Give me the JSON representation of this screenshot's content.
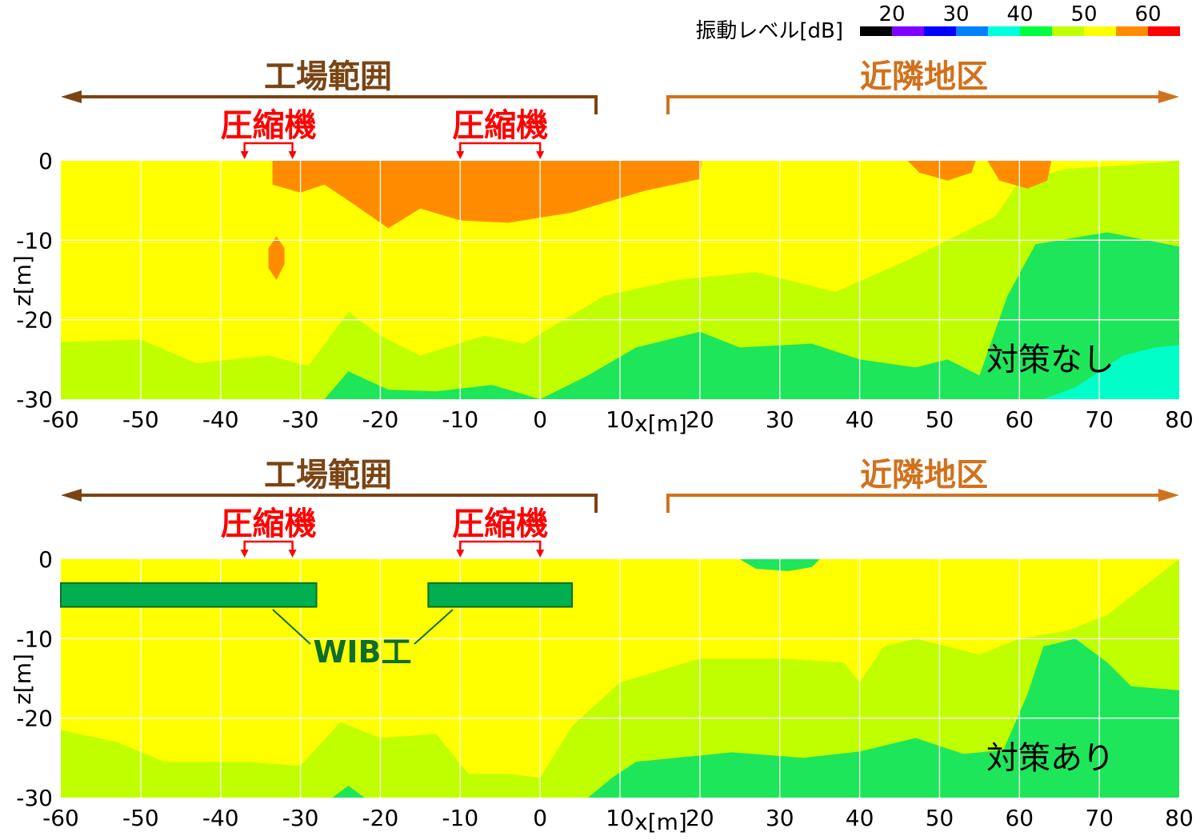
{
  "chart_data": [
    {
      "type": "heatmap",
      "xlabel": "x[m]",
      "ylabel": "z[m]",
      "xlim": [
        -60,
        80
      ],
      "ylim": [
        -30,
        0
      ],
      "xticks": [
        -60,
        -50,
        -40,
        -30,
        -20,
        -10,
        0,
        10,
        20,
        30,
        40,
        50,
        60,
        70,
        80
      ],
      "yticks": [
        0,
        -10,
        -20,
        -30
      ],
      "grid": true,
      "annotations": {
        "factory_range": "工場範囲",
        "factory_x": [
          -60,
          7
        ],
        "neighbor_area": "近隣地区",
        "neighbor_x": [
          16,
          80
        ],
        "compressors": [
          {
            "label": "圧縮機",
            "x": [
              -37,
              -31
            ]
          },
          {
            "label": "圧縮機",
            "x": [
              -10,
              0
            ]
          }
        ],
        "case_label": "対策なし"
      },
      "contours": [
        {
          "level": 45,
          "top": [
            [
              -60,
              -30
            ],
            [
              -60,
              -22.8
            ],
            [
              -50,
              -22.5
            ],
            [
              -43,
              -25.5
            ],
            [
              -34,
              -24.5
            ],
            [
              -29,
              -25.8
            ],
            [
              -24,
              -19
            ],
            [
              -20,
              -22
            ],
            [
              -15,
              -24.5
            ],
            [
              -7,
              -22
            ],
            [
              -2,
              -23
            ],
            [
              8,
              -17
            ],
            [
              17,
              -15
            ],
            [
              27,
              -14
            ],
            [
              37,
              -16.5
            ],
            [
              46,
              -12.5
            ],
            [
              57,
              -7
            ],
            [
              60,
              -2.5
            ],
            [
              66,
              -1
            ],
            [
              74,
              -0.5
            ],
            [
              80,
              0
            ]
          ],
          "right_end": [
            80,
            -30
          ]
        },
        {
          "level": 40,
          "top": [
            [
              -60,
              -30
            ],
            [
              -56,
              -30
            ],
            [
              -52,
              -30
            ],
            [
              -47,
              -30
            ],
            [
              -42,
              -30
            ],
            [
              -37,
              -30
            ],
            [
              -32,
              -30
            ],
            [
              -27,
              -30
            ],
            [
              -24,
              -26.5
            ],
            [
              -19,
              -28.8
            ],
            [
              -13,
              -29
            ],
            [
              -6,
              -28.2
            ],
            [
              0,
              -30
            ],
            [
              6,
              -27
            ],
            [
              12,
              -23.5
            ],
            [
              20,
              -21.5
            ],
            [
              25,
              -23.5
            ],
            [
              34,
              -23
            ],
            [
              40,
              -25
            ],
            [
              47,
              -26
            ],
            [
              51,
              -25
            ],
            [
              55,
              -27
            ],
            [
              58.5,
              -17
            ],
            [
              62,
              -10.5
            ],
            [
              71,
              -9
            ],
            [
              80,
              -10.8
            ]
          ],
          "right_end": [
            80,
            -30
          ]
        },
        {
          "level": 35,
          "top": [
            [
              63,
              -30
            ],
            [
              67,
              -28.5
            ],
            [
              73,
              -24.5
            ],
            [
              77,
              -23.5
            ],
            [
              80,
              -23.2
            ]
          ],
          "right_end": [
            80,
            -30
          ]
        },
        {
          "level": 55,
          "top": [
            [
              -33.5,
              -3
            ],
            [
              -30,
              -4
            ],
            [
              -27,
              -3
            ],
            [
              -24,
              -5
            ],
            [
              -19,
              -8.5
            ],
            [
              -15,
              -6
            ],
            [
              -10,
              -7.5
            ],
            [
              -4,
              -7.8
            ],
            [
              4,
              -6.5
            ],
            [
              9,
              -5
            ],
            [
              13,
              -3.8
            ],
            [
              20,
              -2.3
            ],
            [
              20.2,
              0
            ],
            [
              -33.5,
              0
            ]
          ],
          "right_end": [
            -33.5,
            0
          ]
        },
        {
          "level": 55,
          "spot": [
            [
              -34,
              -13.5
            ],
            [
              -33,
              -15
            ],
            [
              -32,
              -13
            ],
            [
              -32,
              -11
            ],
            [
              -33,
              -9.5
            ],
            [
              -34,
              -11
            ]
          ]
        },
        {
          "level": 55,
          "spot": [
            [
              56,
              0
            ],
            [
              57.5,
              -2.5
            ],
            [
              61,
              -3.5
            ],
            [
              63.5,
              -2.5
            ],
            [
              64,
              0
            ]
          ]
        },
        {
          "level": 55,
          "spot": [
            [
              46,
              0
            ],
            [
              47.5,
              -1.5
            ],
            [
              51,
              -2.5
            ],
            [
              54,
              -1.5
            ],
            [
              54.5,
              0
            ]
          ]
        }
      ]
    },
    {
      "type": "heatmap",
      "xlabel": "x[m]",
      "ylabel": "z[m]",
      "xlim": [
        -60,
        80
      ],
      "ylim": [
        -30,
        0
      ],
      "xticks": [
        -60,
        -50,
        -40,
        -30,
        -20,
        -10,
        0,
        10,
        20,
        30,
        40,
        50,
        60,
        70,
        80
      ],
      "yticks": [
        0,
        -10,
        -20,
        -30
      ],
      "grid": true,
      "annotations": {
        "factory_range": "工場範囲",
        "factory_x": [
          -60,
          7
        ],
        "neighbor_area": "近隣地区",
        "neighbor_x": [
          16,
          80
        ],
        "compressors": [
          {
            "label": "圧縮機",
            "x": [
              -37,
              -31
            ]
          },
          {
            "label": "圧縮機",
            "x": [
              -10,
              0
            ]
          }
        ],
        "case_label": "対策あり",
        "wib_label": "WIB工",
        "wib_barriers": [
          {
            "x": [
              -60,
              -28
            ],
            "z": [
              -3,
              -6
            ]
          },
          {
            "x": [
              -14,
              4
            ],
            "z": [
              -3,
              -6
            ]
          }
        ]
      },
      "contours": [
        {
          "level": 45,
          "top": [
            [
              -60,
              -30
            ],
            [
              -60,
              -21.5
            ],
            [
              -53,
              -23
            ],
            [
              -47,
              -25.5
            ],
            [
              -37,
              -25.5
            ],
            [
              -30,
              -26
            ],
            [
              -25,
              -20.5
            ],
            [
              -20,
              -22.5
            ],
            [
              -13,
              -22
            ],
            [
              -9,
              -27
            ],
            [
              -4,
              -27
            ],
            [
              0,
              -27.5
            ],
            [
              4,
              -21
            ],
            [
              10,
              -15.5
            ],
            [
              20,
              -12.5
            ],
            [
              30,
              -12.5
            ],
            [
              38,
              -13
            ],
            [
              40,
              -15.5
            ],
            [
              43,
              -11
            ],
            [
              47,
              -10
            ],
            [
              53,
              -11.5
            ],
            [
              55,
              -12
            ],
            [
              60,
              -10
            ],
            [
              66,
              -9
            ],
            [
              71,
              -7
            ],
            [
              80,
              0
            ]
          ],
          "right_end": [
            80,
            -30
          ]
        },
        {
          "level": 40,
          "top": [
            [
              -26,
              -30
            ],
            [
              -24,
              -28.5
            ],
            [
              -22,
              -30
            ],
            [
              -12,
              -30
            ],
            [
              -6,
              -30
            ],
            [
              6,
              -30
            ],
            [
              9,
              -27.5
            ],
            [
              12,
              -25.5
            ],
            [
              17,
              -25
            ],
            [
              24,
              -24.3
            ],
            [
              33,
              -25
            ],
            [
              40,
              -24.2
            ],
            [
              47,
              -22.5
            ],
            [
              53,
              -24.5
            ],
            [
              58,
              -24
            ],
            [
              61,
              -17
            ],
            [
              63,
              -11
            ],
            [
              67,
              -10
            ],
            [
              71,
              -13
            ],
            [
              74,
              -16
            ],
            [
              80,
              -16.5
            ]
          ],
          "right_end": [
            80,
            -30
          ]
        },
        {
          "level": 50,
          "top": [
            [
              -39,
              0
            ],
            [
              -38,
              -2
            ],
            [
              -36,
              -6
            ],
            [
              -35,
              -11
            ],
            [
              -34,
              -15
            ],
            [
              -32,
              -16.5
            ],
            [
              -29,
              -10
            ],
            [
              -27,
              -4.5
            ],
            [
              -27,
              0
            ]
          ],
          "right_end": [
            -39,
            0
          ]
        },
        {
          "level": 50,
          "spot": [
            [
              -26,
              0
            ],
            [
              -25,
              -4
            ],
            [
              -23,
              -9
            ],
            [
              -20,
              -12
            ],
            [
              -17,
              -11.5
            ],
            [
              -15,
              -9
            ],
            [
              -14,
              -6
            ],
            [
              -14,
              -3
            ],
            [
              -15,
              0
            ]
          ]
        },
        {
          "level": 50,
          "spot": [
            [
              -5,
              -9
            ],
            [
              -4,
              -13
            ],
            [
              -2,
              -17.5
            ],
            [
              0,
              -19
            ],
            [
              1,
              -16
            ],
            [
              3,
              -10
            ],
            [
              6,
              -6
            ],
            [
              4,
              -4
            ],
            [
              -1,
              -5
            ],
            [
              -3,
              -7
            ]
          ]
        },
        {
          "level": 50,
          "spot": [
            [
              -5,
              0
            ],
            [
              4,
              0
            ],
            [
              8,
              -1
            ],
            [
              12,
              -2
            ],
            [
              18,
              -2
            ],
            [
              19,
              -1
            ],
            [
              19,
              0
            ]
          ]
        },
        {
          "level": 50,
          "spot": [
            [
              48,
              0
            ],
            [
              49,
              -2.5
            ],
            [
              53,
              -3
            ],
            [
              59,
              -3
            ],
            [
              63,
              -2
            ],
            [
              63,
              0
            ]
          ]
        },
        {
          "level": 40,
          "spot": [
            [
              25,
              0
            ],
            [
              27,
              -1.2
            ],
            [
              31,
              -1.5
            ],
            [
              34,
              -1
            ],
            [
              35,
              0
            ]
          ]
        }
      ]
    }
  ],
  "legend": {
    "title": "振動レベル[dB]",
    "tick_labels": [
      "20",
      "30",
      "40",
      "50",
      "60"
    ],
    "colors": [
      "#000000",
      "#8000ff",
      "#0000ff",
      "#0080ff",
      "#00ffdd",
      "#00ff40",
      "#c0ff00",
      "#ffff00",
      "#ff8c00",
      "#ff0000"
    ]
  },
  "palette": {
    "35": "#00ffc8",
    "40": "#1ee65a",
    "45": "#c0ff00",
    "50": "#ffff00",
    "55": "#ff8c00"
  }
}
